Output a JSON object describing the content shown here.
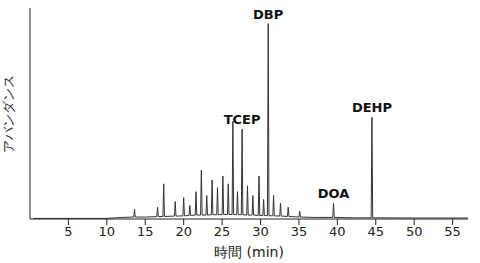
{
  "chart_data": {
    "type": "line",
    "x_label": "時間 (min)",
    "y_label": "アバンダンス",
    "xlim": [
      0,
      57
    ],
    "xticks": [
      5,
      10,
      15,
      20,
      25,
      30,
      35,
      40,
      45,
      50,
      55
    ],
    "ylim": [
      0,
      108
    ],
    "yticks": [],
    "tick_labels": "x",
    "grid": false,
    "color": "#333333",
    "x": [
      0.5,
      10,
      12,
      13.5,
      13.6,
      13.7,
      15,
      16.5,
      16.6,
      16.7,
      17.3,
      17.4,
      17.5,
      18.8,
      18.9,
      19,
      19.9,
      20,
      20.1,
      20.7,
      20.8,
      20.9,
      21.5,
      21.6,
      21.7,
      22.2,
      22.3,
      22.4,
      22.9,
      23,
      23.1,
      23.6,
      23.7,
      23.8,
      24.3,
      24.4,
      24.5,
      25,
      25.1,
      25.2,
      25.7,
      25.8,
      25.9,
      26.3,
      26.4,
      26.5,
      26.9,
      27,
      27.1,
      27.5,
      27.6,
      27.7,
      28.2,
      28.3,
      28.4,
      28.9,
      29,
      29.1,
      29.7,
      29.8,
      29.9,
      30.3,
      30.4,
      30.5,
      30.9,
      31,
      31.1,
      31.6,
      31.7,
      31.8,
      32.5,
      32.6,
      32.7,
      33.5,
      33.6,
      33.7,
      35,
      35.1,
      35.2,
      37,
      39.4,
      39.5,
      39.6,
      42,
      44.4,
      44.5,
      44.6,
      50,
      57
    ],
    "values": [
      0.3,
      0.3,
      0.8,
      1,
      5,
      1,
      1,
      1.2,
      6,
      1.2,
      1.3,
      18,
      1.3,
      1.5,
      9,
      1.5,
      1.6,
      11,
      1.6,
      1.8,
      7,
      1.8,
      2,
      14,
      2,
      2,
      25,
      2,
      2,
      12,
      2,
      2.2,
      20,
      2.2,
      2.2,
      16,
      2.2,
      2.3,
      22,
      2.3,
      2.3,
      18,
      2.3,
      2.3,
      50,
      2.3,
      2.2,
      14,
      2.2,
      2.2,
      46,
      2.2,
      2,
      17,
      2,
      2,
      12,
      2,
      1.8,
      22,
      1.8,
      1.8,
      10,
      1.8,
      1.7,
      100,
      1.7,
      1.6,
      12,
      1.6,
      1.5,
      8,
      1.5,
      1.3,
      6,
      1.3,
      1,
      4,
      1,
      0.8,
      0.8,
      8,
      0.8,
      0.6,
      0.6,
      52,
      0.6,
      0.5,
      0.5
    ],
    "annotations": [
      {
        "text": "TCEP",
        "x": 27.6
      },
      {
        "text": "DBP",
        "x": 31
      },
      {
        "text": "DOA",
        "x": 39.5
      },
      {
        "text": "DEHP",
        "x": 44.5
      }
    ]
  }
}
